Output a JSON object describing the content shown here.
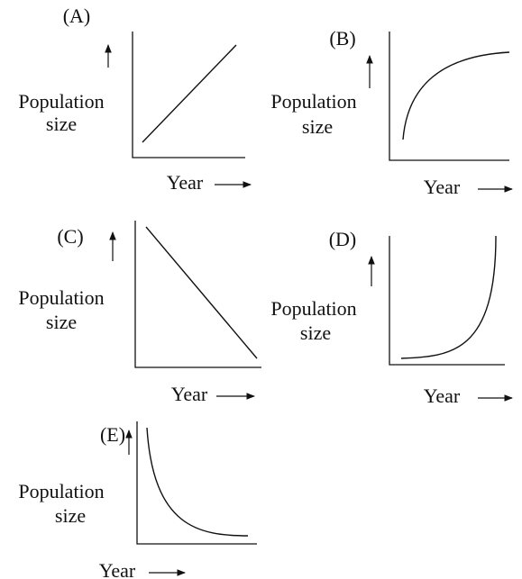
{
  "panels": [
    {
      "label": "(A)",
      "y_label": [
        "Population",
        "size"
      ],
      "x_label": "Year"
    },
    {
      "label": "(B)",
      "y_label": [
        "Population",
        "size"
      ],
      "x_label": "Year"
    },
    {
      "label": "(C)",
      "y_label": [
        "Population",
        "size"
      ],
      "x_label": "Year"
    },
    {
      "label": "(D)",
      "y_label": [
        "Population",
        "size"
      ],
      "x_label": "Year"
    },
    {
      "label": "(E)",
      "y_label": [
        "Population",
        "size"
      ],
      "x_label": "Year"
    }
  ]
}
